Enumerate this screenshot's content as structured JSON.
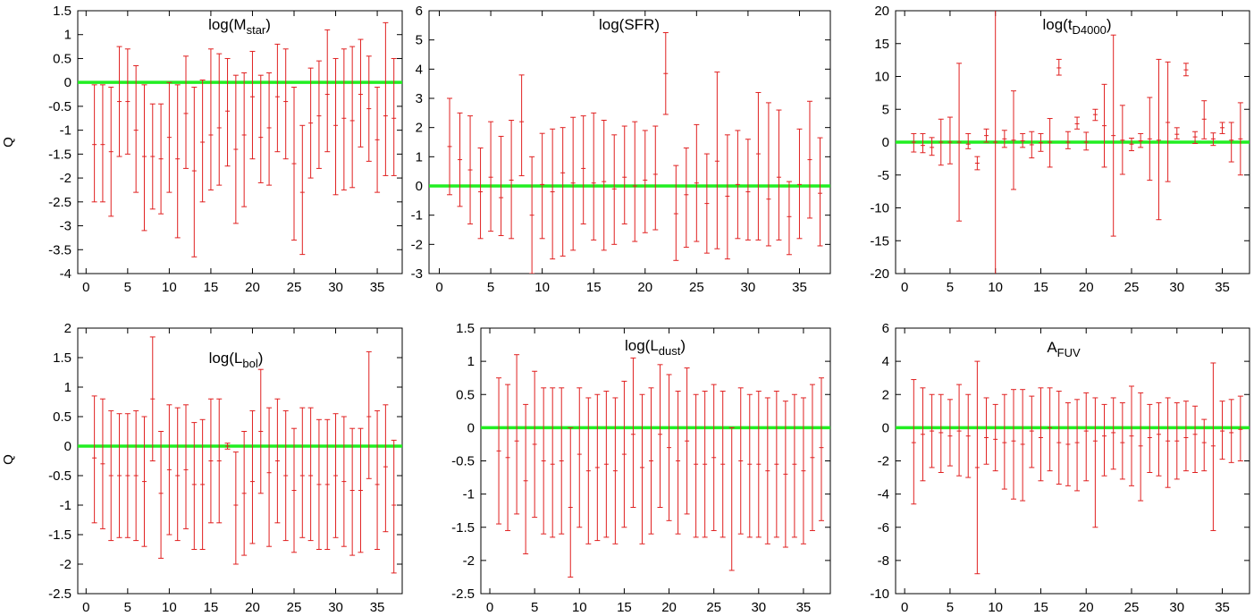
{
  "figure": {
    "ylabel_top": "Q",
    "ylabel_bottom": "Q"
  },
  "chart_data": [
    {
      "id": "mstar",
      "type": "errorbar",
      "title": "log(M",
      "title_sub": "star",
      "title_suffix": ")",
      "xlim": [
        -1,
        38
      ],
      "ylim": [
        -4,
        1.5
      ],
      "xticks": [
        0,
        5,
        10,
        15,
        20,
        25,
        30,
        35
      ],
      "yticks": [
        -4,
        -3.5,
        -3,
        -2.5,
        -2,
        -1.5,
        -1,
        -0.5,
        0,
        0.5,
        1,
        1.5
      ],
      "yticklabels": [
        "-4",
        "-3.5",
        "-3",
        "-2.5",
        "-2",
        "-1.5",
        "-1",
        "-0.5",
        "0",
        "0.5",
        "1",
        "1.5"
      ],
      "reference_line": 0,
      "x": [
        1,
        2,
        3,
        4,
        5,
        6,
        7,
        8,
        9,
        10,
        11,
        12,
        13,
        14,
        15,
        16,
        17,
        18,
        19,
        20,
        21,
        22,
        23,
        24,
        25,
        26,
        27,
        28,
        29,
        30,
        31,
        32,
        33,
        34,
        35,
        36,
        37
      ],
      "y": [
        -1.3,
        -1.3,
        -1.45,
        -0.4,
        -0.4,
        -1.0,
        -1.55,
        -1.55,
        -1.6,
        -1.15,
        -1.6,
        -0.65,
        -1.85,
        -1.25,
        -1.1,
        -0.95,
        -0.6,
        -1.4,
        -1.1,
        -0.3,
        -1.15,
        -0.95,
        -0.3,
        -0.4,
        -1.7,
        -2.3,
        -0.85,
        -0.7,
        -0.25,
        -0.9,
        -0.75,
        -0.8,
        -0.25,
        -0.55,
        -1.2,
        -0.7,
        -0.75
      ],
      "ylow": [
        -2.5,
        -2.5,
        -2.8,
        -1.55,
        -1.5,
        -2.3,
        -3.1,
        -2.65,
        -2.75,
        -2.3,
        -3.25,
        -1.8,
        -3.65,
        -2.5,
        -2.25,
        -2.15,
        -1.75,
        -2.95,
        -2.6,
        -1.6,
        -2.1,
        -2.15,
        -1.45,
        -1.6,
        -3.3,
        -3.6,
        -2.0,
        -1.8,
        -1.45,
        -2.35,
        -2.25,
        -2.2,
        -1.35,
        -1.65,
        -2.3,
        -1.95,
        -1.95
      ],
      "yhigh": [
        -0.05,
        -0.05,
        -0.1,
        0.75,
        0.7,
        0.35,
        -0.05,
        -0.45,
        -0.45,
        0.0,
        -0.05,
        0.55,
        -0.1,
        0.05,
        0.7,
        0.6,
        0.5,
        0.15,
        0.2,
        0.65,
        0.15,
        0.2,
        0.8,
        0.7,
        -0.1,
        -0.9,
        0.3,
        0.45,
        1.1,
        0.5,
        0.7,
        0.75,
        0.9,
        0.55,
        -0.1,
        1.25,
        0.5
      ]
    },
    {
      "id": "sfr",
      "type": "errorbar",
      "title": "log(SFR)",
      "title_sub": "",
      "title_suffix": "",
      "xlim": [
        -1,
        38
      ],
      "ylim": [
        -3,
        6
      ],
      "xticks": [
        0,
        5,
        10,
        15,
        20,
        25,
        30,
        35
      ],
      "yticks": [
        -3,
        -2,
        -1,
        0,
        1,
        2,
        3,
        4,
        5,
        6
      ],
      "yticklabels": [
        "-3",
        "-2",
        "-1",
        "0",
        "1",
        "2",
        "3",
        "4",
        "5",
        "6"
      ],
      "reference_line": 0,
      "x": [
        1,
        2,
        3,
        4,
        5,
        6,
        7,
        8,
        9,
        10,
        11,
        12,
        13,
        14,
        15,
        16,
        17,
        18,
        19,
        20,
        21,
        22,
        23,
        24,
        25,
        26,
        27,
        28,
        29,
        30,
        31,
        32,
        33,
        34,
        35,
        36,
        37
      ],
      "y": [
        1.35,
        0.9,
        0.55,
        -0.2,
        0.3,
        -0.4,
        0.2,
        2.2,
        -1.0,
        0.05,
        -0.2,
        0.45,
        0.1,
        0.6,
        0.1,
        0.15,
        -0.1,
        0.3,
        0.0,
        0.2,
        0.4,
        3.85,
        -0.95,
        -0.3,
        0.1,
        -0.6,
        0.85,
        -0.35,
        0.05,
        -0.2,
        1.1,
        -0.45,
        0.3,
        -1.05,
        0.05,
        0.9,
        -0.25
      ],
      "ylow": [
        -0.3,
        -0.7,
        -1.3,
        -1.8,
        -1.55,
        -1.7,
        -1.8,
        0.35,
        -3.0,
        -1.8,
        -2.5,
        -2.4,
        -2.2,
        -1.3,
        -1.85,
        -2.2,
        -2.0,
        -1.3,
        -1.9,
        -1.6,
        -1.5,
        2.45,
        -2.55,
        -2.1,
        -1.9,
        -2.3,
        -2.15,
        -2.5,
        -1.8,
        -1.85,
        -1.85,
        -2.05,
        -1.85,
        -2.35,
        -1.8,
        -1.1,
        -2.05
      ],
      "yhigh": [
        3.0,
        2.5,
        2.4,
        1.3,
        2.2,
        1.7,
        2.25,
        3.8,
        1.0,
        1.8,
        1.95,
        2.0,
        2.35,
        2.4,
        2.5,
        2.25,
        1.75,
        2.05,
        2.2,
        1.9,
        2.05,
        5.25,
        0.7,
        1.3,
        2.1,
        1.1,
        3.9,
        1.75,
        1.9,
        1.6,
        3.2,
        2.85,
        2.6,
        0.15,
        1.95,
        2.9,
        1.65
      ]
    },
    {
      "id": "tD4000",
      "type": "errorbar",
      "title": "log(t",
      "title_sub": "D4000",
      "title_suffix": ")",
      "xlim": [
        -1,
        38
      ],
      "ylim": [
        -20,
        20
      ],
      "xticks": [
        0,
        5,
        10,
        15,
        20,
        25,
        30,
        35
      ],
      "yticks": [
        -20,
        -15,
        -10,
        -5,
        0,
        5,
        10,
        15,
        20
      ],
      "yticklabels": [
        "-20",
        "-15",
        "-10",
        "-5",
        "0",
        "5",
        "10",
        "15",
        "20"
      ],
      "reference_line": 0,
      "x": [
        1,
        2,
        3,
        4,
        5,
        6,
        7,
        8,
        9,
        10,
        11,
        12,
        13,
        14,
        15,
        16,
        17,
        18,
        19,
        20,
        21,
        22,
        23,
        24,
        25,
        26,
        27,
        28,
        29,
        30,
        31,
        32,
        33,
        34,
        35,
        36,
        37
      ],
      "y": [
        0.0,
        -0.5,
        -0.8,
        0.0,
        0.0,
        0.0,
        -0.3,
        -3.2,
        1.0,
        0.0,
        0.5,
        0.3,
        0.2,
        -0.4,
        -0.1,
        0.0,
        11.3,
        0.0,
        2.8,
        0.0,
        4.2,
        2.5,
        1.0,
        0.3,
        -0.3,
        0.2,
        0.5,
        0.3,
        3.0,
        1.2,
        11.0,
        0.8,
        3.5,
        0.5,
        2.2,
        0.3,
        0.5
      ],
      "ylow": [
        -1.5,
        -1.6,
        -2.0,
        -3.5,
        -3.3,
        -12.0,
        -1.0,
        -4.2,
        0.0,
        -21.0,
        -0.8,
        -7.2,
        -0.8,
        -2.4,
        -1.4,
        -3.8,
        10.2,
        -1.0,
        2.0,
        -1.2,
        3.3,
        -3.8,
        -14.3,
        -4.9,
        -1.3,
        -0.8,
        -5.8,
        -11.8,
        -6.0,
        0.5,
        10.1,
        -0.2,
        0.5,
        -0.5,
        1.3,
        -3.0,
        -5.0
      ],
      "yhigh": [
        1.3,
        1.3,
        0.7,
        3.5,
        3.8,
        12.0,
        1.3,
        -2.2,
        2.0,
        21.0,
        1.8,
        7.8,
        1.3,
        1.6,
        1.3,
        3.6,
        12.6,
        1.6,
        3.8,
        1.5,
        5.0,
        8.8,
        16.3,
        5.6,
        0.6,
        1.3,
        6.8,
        12.6,
        12.2,
        2.2,
        12.0,
        1.6,
        6.3,
        1.4,
        3.0,
        3.0,
        6.0
      ]
    },
    {
      "id": "lbol",
      "type": "errorbar",
      "title": "log(L",
      "title_sub": "bol",
      "title_suffix": ")",
      "xlim": [
        -1,
        38
      ],
      "ylim": [
        -2.5,
        2
      ],
      "xticks": [
        0,
        5,
        10,
        15,
        20,
        25,
        30,
        35
      ],
      "yticks": [
        -2.5,
        -2,
        -1.5,
        -1,
        -0.5,
        0,
        0.5,
        1,
        1.5,
        2
      ],
      "yticklabels": [
        "-2.5",
        "-2",
        "-1.5",
        "-1",
        "-0.5",
        "0",
        "0.5",
        "1",
        "1.5",
        "2"
      ],
      "reference_line": 0,
      "x": [
        1,
        2,
        3,
        4,
        5,
        6,
        7,
        8,
        9,
        10,
        11,
        12,
        13,
        14,
        15,
        16,
        17,
        18,
        19,
        20,
        21,
        22,
        23,
        24,
        25,
        26,
        27,
        28,
        29,
        30,
        31,
        32,
        33,
        34,
        35,
        36,
        37
      ],
      "y": [
        -0.2,
        -0.3,
        -0.5,
        -0.5,
        -0.5,
        -0.5,
        -0.6,
        0.8,
        -0.8,
        -0.4,
        -0.5,
        -0.4,
        -0.65,
        -0.65,
        -0.25,
        -0.25,
        0.0,
        -1.0,
        -0.8,
        -0.6,
        0.25,
        -0.45,
        -0.25,
        -0.5,
        -0.75,
        -0.5,
        -0.5,
        -0.65,
        -0.65,
        -0.5,
        -0.6,
        -0.75,
        -0.75,
        0.5,
        -0.65,
        -0.35,
        -1.0
      ],
      "ylow": [
        -1.3,
        -1.4,
        -1.6,
        -1.55,
        -1.55,
        -1.6,
        -1.7,
        -0.25,
        -1.9,
        -1.5,
        -1.6,
        -1.4,
        -1.75,
        -1.75,
        -1.3,
        -1.3,
        -0.05,
        -2.0,
        -1.85,
        -1.65,
        -0.8,
        -1.7,
        -1.3,
        -1.6,
        -1.8,
        -1.55,
        -1.6,
        -1.75,
        -1.75,
        -1.55,
        -1.7,
        -1.85,
        -1.8,
        -0.55,
        -1.75,
        -1.45,
        -2.15
      ],
      "yhigh": [
        0.85,
        0.8,
        0.6,
        0.55,
        0.55,
        0.6,
        0.5,
        1.85,
        0.25,
        0.7,
        0.65,
        0.7,
        0.4,
        0.45,
        0.8,
        0.8,
        0.05,
        -0.1,
        0.25,
        0.6,
        1.3,
        0.65,
        0.8,
        0.6,
        0.3,
        0.65,
        0.65,
        0.45,
        0.45,
        0.55,
        0.5,
        0.3,
        0.3,
        1.6,
        0.6,
        0.7,
        0.1
      ]
    },
    {
      "id": "ldust",
      "type": "errorbar",
      "title": "log(L",
      "title_sub": "dust",
      "title_suffix": ")",
      "xlim": [
        -1,
        38
      ],
      "ylim": [
        -2.5,
        1.5
      ],
      "xticks": [
        0,
        5,
        10,
        15,
        20,
        25,
        30,
        35
      ],
      "yticks": [
        -2.5,
        -2,
        -1.5,
        -1,
        -0.5,
        0,
        0.5,
        1,
        1.5
      ],
      "yticklabels": [
        "-2.5",
        "-2",
        "-1.5",
        "-1",
        "-0.5",
        "0",
        "0.5",
        "1",
        "1.5"
      ],
      "reference_line": 0,
      "x": [
        1,
        2,
        3,
        4,
        5,
        6,
        7,
        8,
        9,
        10,
        11,
        12,
        13,
        14,
        15,
        16,
        17,
        18,
        19,
        20,
        21,
        22,
        23,
        24,
        25,
        26,
        27,
        28,
        29,
        30,
        31,
        32,
        33,
        34,
        35,
        36,
        37
      ],
      "y": [
        -0.35,
        -0.45,
        -0.2,
        -0.8,
        -0.25,
        -0.5,
        -0.55,
        -0.5,
        -1.2,
        -0.4,
        -0.65,
        -0.6,
        -0.55,
        -0.65,
        -0.4,
        -0.1,
        -0.6,
        -0.5,
        -0.1,
        -0.3,
        -0.5,
        -0.2,
        -0.55,
        -0.55,
        -0.45,
        -0.55,
        0.0,
        -0.5,
        -0.55,
        -0.55,
        -0.65,
        -0.55,
        -0.7,
        -0.55,
        -0.65,
        -0.45,
        -0.3
      ],
      "ylow": [
        -1.45,
        -1.55,
        -1.3,
        -1.9,
        -1.35,
        -1.6,
        -1.65,
        -1.6,
        -2.25,
        -1.5,
        -1.75,
        -1.7,
        -1.65,
        -1.75,
        -1.5,
        -1.2,
        -1.75,
        -1.6,
        -1.2,
        -1.4,
        -1.6,
        -1.3,
        -1.65,
        -1.65,
        -1.55,
        -1.65,
        -2.15,
        -1.6,
        -1.65,
        -1.65,
        -1.75,
        -1.65,
        -1.8,
        -1.65,
        -1.75,
        -1.55,
        -1.4
      ],
      "yhigh": [
        0.75,
        0.65,
        1.1,
        0.35,
        0.85,
        0.6,
        0.6,
        0.6,
        0.0,
        0.6,
        0.45,
        0.5,
        0.55,
        0.45,
        0.7,
        1.05,
        0.5,
        0.6,
        0.95,
        0.8,
        0.55,
        0.9,
        0.5,
        0.55,
        0.65,
        0.55,
        0.0,
        0.6,
        0.5,
        0.55,
        0.45,
        0.55,
        0.4,
        0.5,
        0.45,
        0.65,
        0.75
      ]
    },
    {
      "id": "afuv",
      "type": "errorbar",
      "title": "A",
      "title_sub": "FUV",
      "title_suffix": "",
      "xlim": [
        -1,
        38
      ],
      "ylim": [
        -10,
        6
      ],
      "xticks": [
        0,
        5,
        10,
        15,
        20,
        25,
        30,
        35
      ],
      "yticks": [
        -10,
        -8,
        -6,
        -4,
        -2,
        0,
        2,
        4,
        6
      ],
      "yticklabels": [
        "-10",
        "-8",
        "-6",
        "-4",
        "-2",
        "0",
        "2",
        "4",
        "6"
      ],
      "reference_line": 0,
      "x": [
        1,
        2,
        3,
        4,
        5,
        6,
        7,
        8,
        9,
        10,
        11,
        12,
        13,
        14,
        15,
        16,
        17,
        18,
        19,
        20,
        21,
        22,
        23,
        24,
        25,
        26,
        27,
        28,
        29,
        30,
        31,
        32,
        33,
        34,
        35,
        36,
        37
      ],
      "y": [
        -0.9,
        -0.4,
        -0.2,
        -0.3,
        -0.5,
        -0.2,
        -0.5,
        -2.4,
        -0.6,
        -0.7,
        -0.9,
        -0.8,
        -1.0,
        -0.2,
        -0.6,
        0.0,
        -0.9,
        -1.0,
        -0.9,
        -0.2,
        -0.8,
        -0.5,
        -0.3,
        -0.9,
        -0.5,
        -1.1,
        -0.6,
        -0.4,
        -0.8,
        -0.8,
        -0.6,
        -0.4,
        -0.9,
        -1.1,
        -0.2,
        -0.3,
        -0.1
      ],
      "ylow": [
        -4.6,
        -3.2,
        -2.4,
        -2.7,
        -2.3,
        -2.9,
        -3.0,
        -8.8,
        -2.2,
        -2.6,
        -3.7,
        -4.3,
        -4.4,
        -2.4,
        -3.2,
        -2.6,
        -3.4,
        -3.5,
        -3.8,
        -3.2,
        -6.0,
        -2.9,
        -2.5,
        -3.1,
        -3.5,
        -4.4,
        -2.7,
        -2.9,
        -3.6,
        -3.1,
        -2.6,
        -2.7,
        -2.6,
        -6.2,
        -1.9,
        -2.1,
        -2.0
      ],
      "yhigh": [
        2.9,
        2.4,
        2.0,
        2.0,
        1.7,
        2.6,
        2.0,
        4.0,
        1.8,
        1.4,
        2.0,
        2.3,
        2.3,
        1.9,
        2.4,
        2.4,
        2.2,
        1.5,
        1.7,
        2.1,
        1.8,
        1.4,
        1.8,
        1.5,
        2.5,
        2.1,
        1.4,
        1.5,
        1.8,
        1.5,
        1.6,
        1.3,
        0.5,
        3.9,
        1.6,
        1.7,
        1.9
      ]
    }
  ]
}
